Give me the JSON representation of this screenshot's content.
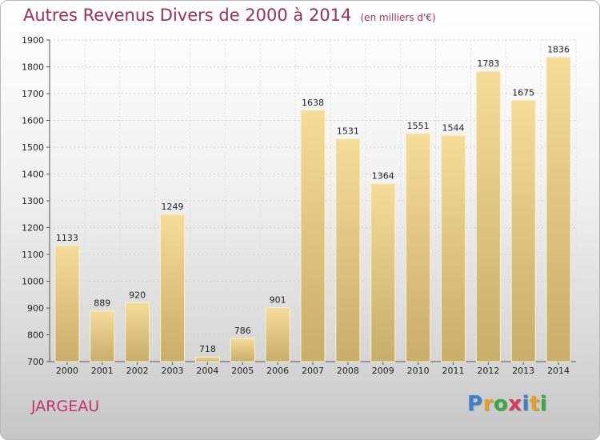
{
  "colors": {
    "title": "#a0305a",
    "city": "#c2336a",
    "bar_light": "#f5dc98",
    "bar_dark": "#c9ad6a"
  },
  "city": "JARGEAU",
  "brand": {
    "letters": [
      {
        "char": "P",
        "color": "#3a7fd0"
      },
      {
        "char": "r",
        "color": "#e8a020"
      },
      {
        "char": "o",
        "color": "#3aa844"
      },
      {
        "char": "x",
        "color": "#d83a5a"
      },
      {
        "char": "i",
        "color": "#3a7fd0"
      },
      {
        "char": "t",
        "color": "#e8a020"
      },
      {
        "char": "i",
        "color": "#3aa844"
      }
    ]
  },
  "chart_data": {
    "type": "bar",
    "title": "Autres Revenus Divers de 2000 à 2014",
    "subtitle": "(en milliers d'€)",
    "categories": [
      "2000",
      "2001",
      "2002",
      "2003",
      "2004",
      "2005",
      "2006",
      "2007",
      "2008",
      "2009",
      "2010",
      "2011",
      "2012",
      "2013",
      "2014"
    ],
    "values": [
      1133,
      889,
      920,
      1249,
      718,
      786,
      901,
      1638,
      1531,
      1364,
      1551,
      1544,
      1783,
      1675,
      1836
    ],
    "ylim": [
      700,
      1900
    ],
    "yticks": [
      700,
      800,
      900,
      1000,
      1100,
      1200,
      1300,
      1400,
      1500,
      1600,
      1700,
      1800,
      1900
    ],
    "grid": true,
    "data_labels": true
  }
}
